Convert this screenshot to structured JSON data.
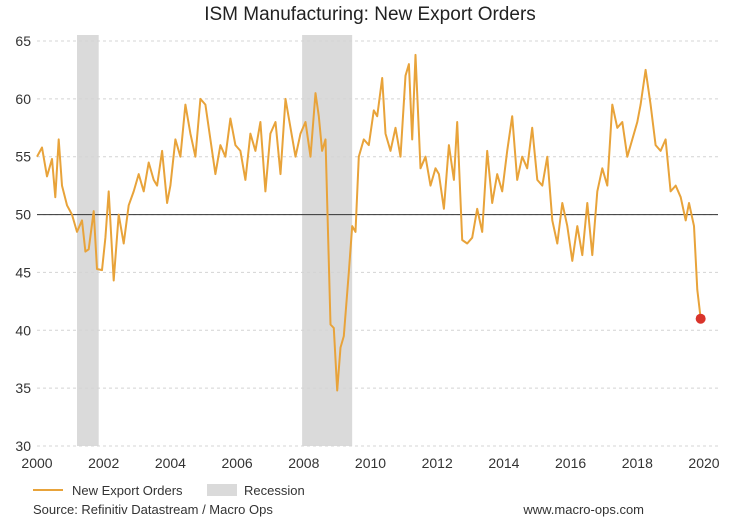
{
  "chart_data": {
    "type": "line",
    "title": "ISM Manufacturing: New Export Orders",
    "xlabel": "",
    "ylabel": "",
    "xlim": [
      2000,
      2020
    ],
    "ylim": [
      30,
      65
    ],
    "x_ticks": [
      "2000",
      "2002",
      "2004",
      "2006",
      "2008",
      "2010",
      "2012",
      "2014",
      "2016",
      "2018",
      "2020"
    ],
    "y_ticks": [
      "30",
      "35",
      "40",
      "45",
      "50",
      "55",
      "60",
      "65"
    ],
    "grid": "horizontal dashed",
    "reference_line": 50,
    "legend_position": "bottom-left",
    "series": [
      {
        "name": "New Export Orders",
        "color": "#E8A33A",
        "x": [
          2000.0,
          2000.15,
          2000.3,
          2000.45,
          2000.55,
          2000.65,
          2000.75,
          2000.9,
          2001.05,
          2001.2,
          2001.35,
          2001.45,
          2001.55,
          2001.7,
          2001.8,
          2001.95,
          2002.05,
          2002.15,
          2002.3,
          2002.45,
          2002.6,
          2002.75,
          2002.9,
          2003.05,
          2003.2,
          2003.35,
          2003.5,
          2003.6,
          2003.75,
          2003.9,
          2004.0,
          2004.15,
          2004.3,
          2004.45,
          2004.6,
          2004.75,
          2004.9,
          2005.05,
          2005.2,
          2005.35,
          2005.5,
          2005.65,
          2005.8,
          2005.95,
          2006.1,
          2006.25,
          2006.4,
          2006.55,
          2006.7,
          2006.85,
          2007.0,
          2007.15,
          2007.3,
          2007.45,
          2007.6,
          2007.75,
          2007.9,
          2008.05,
          2008.2,
          2008.35,
          2008.45,
          2008.55,
          2008.65,
          2008.8,
          2008.9,
          2009.0,
          2009.1,
          2009.2,
          2009.35,
          2009.45,
          2009.55,
          2009.65,
          2009.8,
          2009.95,
          2010.1,
          2010.2,
          2010.35,
          2010.45,
          2010.6,
          2010.75,
          2010.9,
          2011.05,
          2011.15,
          2011.25,
          2011.35,
          2011.5,
          2011.65,
          2011.8,
          2011.95,
          2012.05,
          2012.2,
          2012.35,
          2012.5,
          2012.6,
          2012.75,
          2012.9,
          2013.05,
          2013.2,
          2013.35,
          2013.5,
          2013.65,
          2013.8,
          2013.95,
          2014.1,
          2014.25,
          2014.4,
          2014.55,
          2014.7,
          2014.85,
          2015.0,
          2015.15,
          2015.3,
          2015.45,
          2015.6,
          2015.75,
          2015.9,
          2016.05,
          2016.2,
          2016.35,
          2016.5,
          2016.65,
          2016.8,
          2016.95,
          2017.1,
          2017.25,
          2017.4,
          2017.55,
          2017.7,
          2017.85,
          2018.0,
          2018.1,
          2018.25,
          2018.4,
          2018.55,
          2018.7,
          2018.85,
          2019.0,
          2019.15,
          2019.3,
          2019.45,
          2019.55,
          2019.7,
          2019.8,
          2019.9
        ],
        "values": [
          55.0,
          55.8,
          53.3,
          54.8,
          51.5,
          56.5,
          52.5,
          50.8,
          50.0,
          48.5,
          49.5,
          46.8,
          47.0,
          50.3,
          45.3,
          45.2,
          48.0,
          52.0,
          44.3,
          50.0,
          47.5,
          50.8,
          52.0,
          53.5,
          52.0,
          54.5,
          53.0,
          52.5,
          55.5,
          51.0,
          52.5,
          56.5,
          55.0,
          59.5,
          57.0,
          55.0,
          60.0,
          59.5,
          56.5,
          53.5,
          56.0,
          55.0,
          58.3,
          56.0,
          55.5,
          53.0,
          57.0,
          55.5,
          58.0,
          52.0,
          57.0,
          58.0,
          53.5,
          60.0,
          57.5,
          55.0,
          57.0,
          58.0,
          55.0,
          60.5,
          58.5,
          55.5,
          56.5,
          40.5,
          40.2,
          34.8,
          38.5,
          39.5,
          45.0,
          49.0,
          48.5,
          55.0,
          56.5,
          56.0,
          59.0,
          58.5,
          61.8,
          57.0,
          55.5,
          57.5,
          55.0,
          62.0,
          63.0,
          56.5,
          63.8,
          54.0,
          55.0,
          52.5,
          54.0,
          53.5,
          50.5,
          56.0,
          53.0,
          58.0,
          47.8,
          47.5,
          48.0,
          50.5,
          48.5,
          55.5,
          51.0,
          53.5,
          52.0,
          55.5,
          58.5,
          53.0,
          55.0,
          54.0,
          57.5,
          53.0,
          52.5,
          55.0,
          49.5,
          47.5,
          51.0,
          49.0,
          46.0,
          49.0,
          46.5,
          51.0,
          46.5,
          52.0,
          54.0,
          52.5,
          59.5,
          57.5,
          58.0,
          55.0,
          56.5,
          58.0,
          59.5,
          62.5,
          59.5,
          56.0,
          55.5,
          56.5,
          52.0,
          52.5,
          51.5,
          49.5,
          51.0,
          49.0,
          43.5,
          41.0
        ]
      },
      {
        "name": "Recession",
        "color": "#DADADA",
        "periods": [
          [
            2001.2,
            2001.85
          ],
          [
            2007.95,
            2009.45
          ]
        ]
      }
    ],
    "highlight_point": {
      "x": 2019.9,
      "y": 41.0,
      "color": "#D9342B"
    }
  },
  "footer": {
    "source": "Source: Refinitiv Datastream / Macro Ops",
    "website": "www.macro-ops.com"
  }
}
